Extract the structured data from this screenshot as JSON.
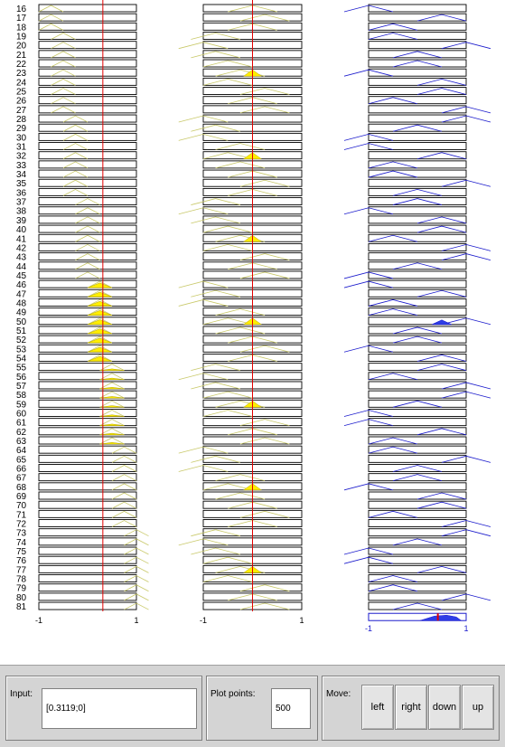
{
  "rules": {
    "first_rule": 16,
    "count": 66,
    "rule_labels": [
      "16",
      "17",
      "18",
      "19",
      "20",
      "21",
      "22",
      "23",
      "24",
      "25",
      "26",
      "27",
      "28",
      "29",
      "30",
      "31",
      "32",
      "33",
      "34",
      "35",
      "36",
      "37",
      "38",
      "39",
      "40",
      "41",
      "42",
      "43",
      "44",
      "45",
      "46",
      "47",
      "48",
      "49",
      "50",
      "51",
      "52",
      "53",
      "54",
      "55",
      "56",
      "57",
      "58",
      "59",
      "60",
      "61",
      "62",
      "63",
      "64",
      "65",
      "66",
      "67",
      "68",
      "69",
      "70",
      "71",
      "72",
      "73",
      "74",
      "75",
      "76",
      "77",
      "78",
      "79",
      "80",
      "81"
    ]
  },
  "axes": {
    "input1": {
      "min_label": "-1",
      "max_label": "1"
    },
    "input2": {
      "min_label": "-1",
      "max_label": "1"
    },
    "output": {
      "min_label": "-1",
      "max_label": "1"
    }
  },
  "input_value": {
    "x1": 0.3119,
    "x2": 0
  },
  "colors": {
    "input_mf": "#c9c96a",
    "input_fill": "#ffee00",
    "output_mf": "#1a1acc",
    "output_fill": "#2e3ee6",
    "cursor": "#e00000",
    "frame": "#000000"
  },
  "controls": {
    "input": {
      "label": "Input:",
      "value": "[0.3119;0]"
    },
    "plot_points": {
      "label": "Plot points:",
      "value": "500"
    },
    "move": {
      "label": "Move:",
      "buttons": [
        "left",
        "right",
        "down",
        "up"
      ]
    }
  }
}
